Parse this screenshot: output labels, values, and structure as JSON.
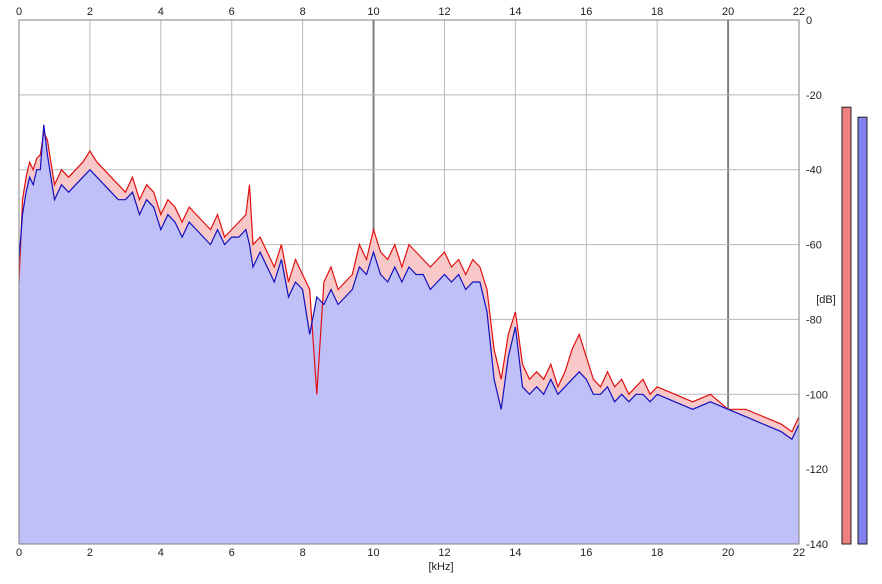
{
  "chart_data": {
    "type": "area",
    "title": "",
    "xlabel": "[kHz]",
    "ylabel": "[dB]",
    "xlim": [
      0,
      22
    ],
    "ylim": [
      -140,
      0
    ],
    "xticks": [
      0,
      2,
      4,
      6,
      8,
      10,
      12,
      14,
      16,
      18,
      20,
      22
    ],
    "yticks": [
      0,
      -20,
      -40,
      -60,
      -80,
      -100,
      -120,
      -140
    ],
    "ytick_labels": [
      "0",
      "-20",
      "-40",
      "-60",
      "-80",
      "-100",
      "-120",
      "-140"
    ],
    "grid": true,
    "x": [
      0.0,
      0.1,
      0.2,
      0.3,
      0.4,
      0.5,
      0.6,
      0.7,
      0.8,
      0.9,
      1.0,
      1.2,
      1.4,
      1.6,
      1.8,
      2.0,
      2.2,
      2.4,
      2.6,
      2.8,
      3.0,
      3.2,
      3.4,
      3.6,
      3.8,
      4.0,
      4.2,
      4.4,
      4.6,
      4.8,
      5.0,
      5.2,
      5.4,
      5.6,
      5.8,
      6.0,
      6.2,
      6.4,
      6.5,
      6.6,
      6.8,
      7.0,
      7.2,
      7.4,
      7.6,
      7.8,
      8.0,
      8.2,
      8.4,
      8.6,
      8.8,
      9.0,
      9.2,
      9.4,
      9.6,
      9.8,
      10.0,
      10.2,
      10.4,
      10.6,
      10.8,
      11.0,
      11.2,
      11.4,
      11.6,
      11.8,
      12.0,
      12.2,
      12.4,
      12.6,
      12.8,
      13.0,
      13.2,
      13.4,
      13.6,
      13.8,
      14.0,
      14.2,
      14.4,
      14.6,
      14.8,
      15.0,
      15.2,
      15.4,
      15.6,
      15.8,
      16.0,
      16.2,
      16.4,
      16.6,
      16.8,
      17.0,
      17.2,
      17.4,
      17.6,
      17.8,
      18.0,
      18.5,
      19.0,
      19.5,
      20.0,
      20.5,
      21.0,
      21.5,
      21.8,
      22.0
    ],
    "series": [
      {
        "color": "#e01010",
        "values": [
          -70,
          -48,
          -42,
          -38,
          -40,
          -37,
          -36,
          -30,
          -32,
          -38,
          -44,
          -40,
          -42,
          -40,
          -38,
          -35,
          -38,
          -40,
          -42,
          -44,
          -46,
          -42,
          -48,
          -44,
          -46,
          -52,
          -48,
          -50,
          -54,
          -50,
          -52,
          -54,
          -56,
          -52,
          -58,
          -56,
          -54,
          -52,
          -44,
          -60,
          -58,
          -62,
          -66,
          -60,
          -70,
          -64,
          -68,
          -72,
          -100,
          -70,
          -66,
          -72,
          -70,
          -68,
          -60,
          -64,
          -56,
          -62,
          -64,
          -60,
          -66,
          -60,
          -62,
          -64,
          -66,
          -64,
          -62,
          -66,
          -64,
          -68,
          -64,
          -66,
          -72,
          -88,
          -96,
          -84,
          -78,
          -92,
          -96,
          -94,
          -96,
          -92,
          -98,
          -94,
          -88,
          -84,
          -90,
          -96,
          -98,
          -94,
          -98,
          -96,
          -100,
          -98,
          -96,
          -100,
          -98,
          -100,
          -102,
          -100,
          -104,
          -104,
          -106,
          -108,
          -110,
          -106
        ]
      },
      {
        "color": "#1010c0",
        "values": [
          -64,
          -52,
          -46,
          -42,
          -44,
          -40,
          -40,
          -28,
          -36,
          -42,
          -48,
          -44,
          -46,
          -44,
          -42,
          -40,
          -42,
          -44,
          -46,
          -48,
          -48,
          -46,
          -52,
          -48,
          -50,
          -56,
          -52,
          -54,
          -58,
          -54,
          -56,
          -58,
          -60,
          -56,
          -60,
          -58,
          -58,
          -56,
          -60,
          -66,
          -62,
          -66,
          -70,
          -64,
          -74,
          -70,
          -72,
          -84,
          -74,
          -76,
          -72,
          -76,
          -74,
          -72,
          -66,
          -68,
          -62,
          -68,
          -70,
          -66,
          -70,
          -66,
          -68,
          -68,
          -72,
          -70,
          -68,
          -70,
          -68,
          -72,
          -70,
          -70,
          -78,
          -96,
          -104,
          -90,
          -82,
          -98,
          -100,
          -98,
          -100,
          -96,
          -100,
          -98,
          -96,
          -94,
          -96,
          -100,
          -100,
          -98,
          -102,
          -100,
          -102,
          -100,
          -100,
          -102,
          -100,
          -102,
          -104,
          -102,
          -104,
          -106,
          -108,
          -110,
          -112,
          -108
        ]
      }
    ]
  },
  "axis": {
    "ylabel": "[dB]",
    "xlabel": "[kHz]"
  },
  "colors": {
    "fill_blue": "#c0c0f8",
    "fill_red": "#f8c8c8",
    "line_red": "#e01010",
    "line_blue": "#1010c0",
    "meter_red": "#f08080",
    "meter_blue": "#8080f0",
    "grid": "#b8b8b8",
    "grid_major": "#808080"
  },
  "meters": {
    "left_level": 0.9,
    "right_level": 0.9
  }
}
